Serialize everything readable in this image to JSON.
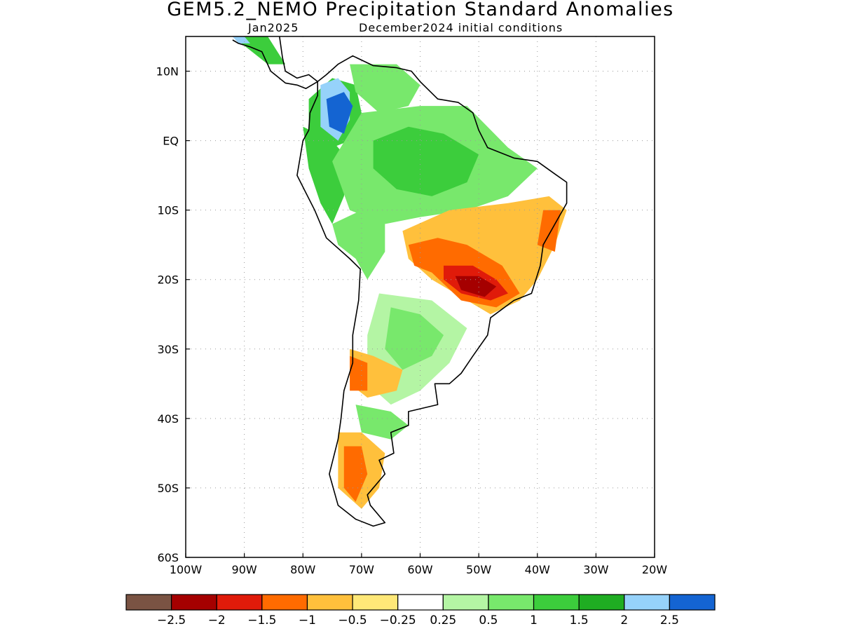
{
  "title": "GEM5.2_NEMO Precipitation Standard Anomalies",
  "subtitle_left": "Jan2025",
  "subtitle_right": "December2024 initial conditions",
  "map": {
    "lon_range": [
      -100,
      -20
    ],
    "lat_range": [
      -60,
      15
    ],
    "lon_ticks": [
      {
        "value": -100,
        "label": "100W"
      },
      {
        "value": -90,
        "label": "90W"
      },
      {
        "value": -80,
        "label": "80W"
      },
      {
        "value": -70,
        "label": "70W"
      },
      {
        "value": -60,
        "label": "60W"
      },
      {
        "value": -50,
        "label": "50W"
      },
      {
        "value": -40,
        "label": "40W"
      },
      {
        "value": -30,
        "label": "30W"
      },
      {
        "value": -20,
        "label": "20W"
      }
    ],
    "lat_ticks": [
      {
        "value": 10,
        "label": "10N"
      },
      {
        "value": 0,
        "label": "EQ"
      },
      {
        "value": -10,
        "label": "10S"
      },
      {
        "value": -20,
        "label": "20S"
      },
      {
        "value": -30,
        "label": "30S"
      },
      {
        "value": -40,
        "label": "40S"
      },
      {
        "value": -50,
        "label": "50S"
      },
      {
        "value": -60,
        "label": "60S"
      }
    ],
    "grid": true
  },
  "colorbar": {
    "colors": [
      "#7a5343",
      "#a50000",
      "#e01b0a",
      "#ff6b00",
      "#ffc03c",
      "#ffe878",
      "#ffffff",
      "#b4f5a4",
      "#78e86c",
      "#3ccd3c",
      "#1fad22",
      "#96d2fa",
      "#1464d2"
    ],
    "labels": [
      "−2.5",
      "−2",
      "−1.5",
      "−1",
      "−0.5",
      "−0.25",
      "0.25",
      "0.5",
      "1",
      "1.5",
      "2",
      "2.5"
    ]
  },
  "anomaly_regions": [
    {
      "name": "colombia-west",
      "level": 1.5,
      "color": "#3ccd3c",
      "poly": [
        [
          -79,
          6
        ],
        [
          -75,
          9
        ],
        [
          -71,
          8
        ],
        [
          -70,
          4
        ],
        [
          -72,
          0
        ],
        [
          -75,
          -1
        ],
        [
          -79,
          1
        ]
      ]
    },
    {
      "name": "colombia-andes",
      "level": 2,
      "color": "#96d2fa",
      "poly": [
        [
          -77,
          8
        ],
        [
          -74,
          9
        ],
        [
          -72,
          7
        ],
        [
          -72,
          3
        ],
        [
          -74,
          0
        ],
        [
          -77,
          2
        ]
      ]
    },
    {
      "name": "colombia-core",
      "level": 2.5,
      "color": "#1464d2",
      "poly": [
        [
          -76,
          6
        ],
        [
          -73,
          7
        ],
        [
          -71.5,
          5
        ],
        [
          -73,
          1
        ],
        [
          -75.5,
          2
        ]
      ]
    },
    {
      "name": "venezuela",
      "level": 1,
      "color": "#78e86c",
      "poly": [
        [
          -72,
          11
        ],
        [
          -64,
          11
        ],
        [
          -60,
          8
        ],
        [
          -62,
          5
        ],
        [
          -67,
          4
        ],
        [
          -71,
          7
        ]
      ]
    },
    {
      "name": "central-america",
      "level": 1.5,
      "color": "#3ccd3c",
      "poly": [
        [
          -92,
          15
        ],
        [
          -86,
          15
        ],
        [
          -83,
          11
        ],
        [
          -86,
          11
        ],
        [
          -89,
          13
        ]
      ]
    },
    {
      "name": "central-america-blue",
      "level": 2,
      "color": "#96d2fa",
      "poly": [
        [
          -92,
          15
        ],
        [
          -90,
          15
        ],
        [
          -89,
          14
        ],
        [
          -91,
          14
        ]
      ]
    },
    {
      "name": "amazon-west",
      "level": 1.5,
      "color": "#3ccd3c",
      "poly": [
        [
          -80,
          2
        ],
        [
          -75,
          0
        ],
        [
          -72,
          -3
        ],
        [
          -73,
          -8
        ],
        [
          -75,
          -12
        ],
        [
          -77,
          -9
        ],
        [
          -79,
          -4
        ]
      ]
    },
    {
      "name": "amazon-north",
      "level": 1,
      "color": "#78e86c",
      "poly": [
        [
          -70,
          4
        ],
        [
          -60,
          5
        ],
        [
          -52,
          5
        ],
        [
          -45,
          -1
        ],
        [
          -40,
          -4
        ],
        [
          -45,
          -8
        ],
        [
          -52,
          -10
        ],
        [
          -60,
          -11
        ],
        [
          -66,
          -12
        ],
        [
          -72,
          -10
        ],
        [
          -75,
          -3
        ]
      ]
    },
    {
      "name": "amazon-core",
      "level": 1.5,
      "color": "#3ccd3c",
      "poly": [
        [
          -68,
          0
        ],
        [
          -62,
          2
        ],
        [
          -56,
          1
        ],
        [
          -50,
          -2
        ],
        [
          -52,
          -6
        ],
        [
          -58,
          -8
        ],
        [
          -64,
          -7
        ],
        [
          -68,
          -4
        ]
      ]
    },
    {
      "name": "peru-bolivia",
      "level": 1,
      "color": "#78e86c",
      "poly": [
        [
          -75,
          -12
        ],
        [
          -70,
          -10
        ],
        [
          -66,
          -12
        ],
        [
          -66,
          -16
        ],
        [
          -69,
          -20
        ],
        [
          -71,
          -17
        ],
        [
          -74,
          -15
        ]
      ]
    },
    {
      "name": "brazil-central-dry",
      "level": -0.5,
      "color": "#ffc03c",
      "poly": [
        [
          -63,
          -13
        ],
        [
          -55,
          -10
        ],
        [
          -45,
          -9
        ],
        [
          -38,
          -8
        ],
        [
          -35,
          -10
        ],
        [
          -37,
          -15
        ],
        [
          -40,
          -20
        ],
        [
          -43,
          -23
        ],
        [
          -48,
          -25
        ],
        [
          -54,
          -22
        ],
        [
          -58,
          -20
        ],
        [
          -62,
          -17
        ]
      ]
    },
    {
      "name": "brazil-south-dry",
      "level": -1,
      "color": "#ff6b00",
      "poly": [
        [
          -62,
          -15
        ],
        [
          -57,
          -14
        ],
        [
          -52,
          -15
        ],
        [
          -46,
          -18
        ],
        [
          -43,
          -22
        ],
        [
          -47,
          -24
        ],
        [
          -53,
          -23
        ],
        [
          -58,
          -19
        ],
        [
          -61,
          -18
        ]
      ]
    },
    {
      "name": "brazil-core-dry",
      "level": -1.5,
      "color": "#e01b0a",
      "poly": [
        [
          -56,
          -18
        ],
        [
          -51,
          -18
        ],
        [
          -47,
          -20
        ],
        [
          -45,
          -22
        ],
        [
          -48,
          -23
        ],
        [
          -53,
          -22
        ],
        [
          -56,
          -20
        ]
      ]
    },
    {
      "name": "brazil-deep-dry",
      "level": -2,
      "color": "#a50000",
      "poly": [
        [
          -54,
          -19.5
        ],
        [
          -50,
          -19.5
        ],
        [
          -47,
          -21
        ],
        [
          -49,
          -22.5
        ],
        [
          -53,
          -21.5
        ]
      ]
    },
    {
      "name": "brazil-east-dry",
      "level": -1,
      "color": "#ff6b00",
      "poly": [
        [
          -39,
          -10
        ],
        [
          -36,
          -10
        ],
        [
          -37,
          -16
        ],
        [
          -40,
          -15
        ]
      ]
    },
    {
      "name": "argentina-north",
      "level": 0.5,
      "color": "#b4f5a4",
      "poly": [
        [
          -67,
          -22
        ],
        [
          -58,
          -23
        ],
        [
          -52,
          -27
        ],
        [
          -55,
          -32
        ],
        [
          -60,
          -36
        ],
        [
          -65,
          -38
        ],
        [
          -69,
          -35
        ],
        [
          -69,
          -28
        ]
      ]
    },
    {
      "name": "argentina-north-green",
      "level": 1,
      "color": "#78e86c",
      "poly": [
        [
          -65,
          -24
        ],
        [
          -60,
          -25
        ],
        [
          -56,
          -28
        ],
        [
          -58,
          -31
        ],
        [
          -63,
          -33
        ],
        [
          -66,
          -30
        ]
      ]
    },
    {
      "name": "chile-central-dry",
      "level": -0.5,
      "color": "#ffc03c",
      "poly": [
        [
          -72,
          -30
        ],
        [
          -68,
          -31
        ],
        [
          -63,
          -33
        ],
        [
          -64,
          -36
        ],
        [
          -69,
          -37
        ],
        [
          -72,
          -35
        ]
      ]
    },
    {
      "name": "chile-core-dry",
      "level": -1,
      "color": "#ff6b00",
      "poly": [
        [
          -72,
          -31
        ],
        [
          -69,
          -32
        ],
        [
          -69,
          -36
        ],
        [
          -72,
          -36
        ]
      ]
    },
    {
      "name": "patagonia-green",
      "level": 1,
      "color": "#78e86c",
      "poly": [
        [
          -71,
          -38
        ],
        [
          -65,
          -39
        ],
        [
          -62,
          -41
        ],
        [
          -65,
          -43
        ],
        [
          -70,
          -42
        ]
      ]
    },
    {
      "name": "patagonia-dry",
      "level": -0.5,
      "color": "#ffc03c",
      "poly": [
        [
          -74,
          -42
        ],
        [
          -70,
          -42
        ],
        [
          -66,
          -45
        ],
        [
          -67,
          -50
        ],
        [
          -70,
          -53
        ],
        [
          -74,
          -50
        ]
      ]
    },
    {
      "name": "patagonia-core-dry",
      "level": -1,
      "color": "#ff6b00",
      "poly": [
        [
          -73,
          -44
        ],
        [
          -70,
          -44
        ],
        [
          -69,
          -48
        ],
        [
          -71,
          -52
        ],
        [
          -73,
          -50
        ]
      ]
    }
  ],
  "coastline": [
    [
      -77.5,
      8.5
    ],
    [
      -76,
      9.5
    ],
    [
      -74,
      11
    ],
    [
      -71.5,
      12.2
    ],
    [
      -68,
      10.8
    ],
    [
      -64,
      10.5
    ],
    [
      -61.5,
      10
    ],
    [
      -60,
      8.5
    ],
    [
      -57,
      6
    ],
    [
      -53.5,
      5.5
    ],
    [
      -51,
      4
    ],
    [
      -50,
      1.5
    ],
    [
      -48.5,
      -1
    ],
    [
      -44,
      -2.5
    ],
    [
      -40,
      -3
    ],
    [
      -37,
      -4.8
    ],
    [
      -35,
      -6
    ],
    [
      -35,
      -9
    ],
    [
      -37,
      -12
    ],
    [
      -39,
      -15
    ],
    [
      -39.5,
      -18
    ],
    [
      -41,
      -22
    ],
    [
      -44,
      -23
    ],
    [
      -48,
      -25.5
    ],
    [
      -48.5,
      -28
    ],
    [
      -51,
      -31
    ],
    [
      -53,
      -33.5
    ],
    [
      -55,
      -35
    ],
    [
      -57.5,
      -35
    ],
    [
      -57,
      -38
    ],
    [
      -62,
      -39
    ],
    [
      -62,
      -41
    ],
    [
      -65,
      -42
    ],
    [
      -64.5,
      -45
    ],
    [
      -67,
      -46
    ],
    [
      -66,
      -48
    ],
    [
      -69,
      -51
    ],
    [
      -68.5,
      -52.5
    ],
    [
      -66,
      -55
    ],
    [
      -68,
      -55.5
    ],
    [
      -71,
      -54.5
    ],
    [
      -74,
      -52.5
    ],
    [
      -75.5,
      -48
    ],
    [
      -74,
      -43
    ],
    [
      -73.5,
      -40
    ],
    [
      -73,
      -36
    ],
    [
      -71.5,
      -32
    ],
    [
      -71.5,
      -28
    ],
    [
      -70.5,
      -23
    ],
    [
      -70.2,
      -18.5
    ],
    [
      -72,
      -17
    ],
    [
      -76,
      -14
    ],
    [
      -78,
      -10
    ],
    [
      -79.5,
      -7.5
    ],
    [
      -81,
      -5
    ],
    [
      -80.5,
      -2.5
    ],
    [
      -80,
      0
    ],
    [
      -79,
      1.5
    ],
    [
      -78.8,
      4
    ],
    [
      -77.5,
      6.5
    ],
    [
      -77.5,
      8.5
    ]
  ],
  "central_america": [
    [
      -92,
      15
    ],
    [
      -89,
      15.8
    ],
    [
      -88,
      15.5
    ],
    [
      -86,
      15.8
    ],
    [
      -84,
      15
    ],
    [
      -83.5,
      12
    ],
    [
      -83,
      10
    ],
    [
      -81,
      9
    ],
    [
      -79,
      9.5
    ],
    [
      -77.5,
      8.5
    ],
    [
      -79.5,
      7.5
    ],
    [
      -81,
      8
    ],
    [
      -83,
      8.3
    ],
    [
      -85.5,
      10
    ],
    [
      -87,
      12.8
    ],
    [
      -89,
      13.5
    ],
    [
      -91,
      14
    ],
    [
      -92,
      14.5
    ]
  ]
}
